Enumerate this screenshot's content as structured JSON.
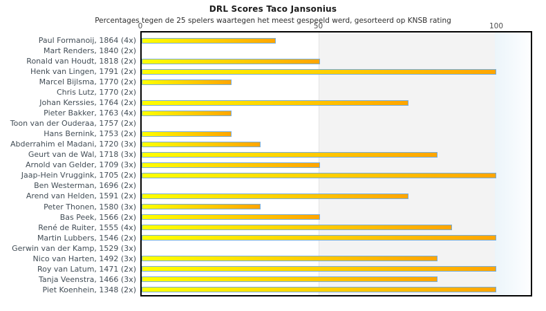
{
  "header": {
    "title": "DRL Scores Taco Jansonius",
    "subtitle": "Percentages tegen de 25 spelers waartegen het meest gespeeld werd, gesorteerd op KNSB rating"
  },
  "chart_data": {
    "type": "bar",
    "orientation": "horizontal",
    "title": "DRL Scores Taco Jansonius",
    "subtitle": "Percentages tegen de 25 spelers waartegen het meest gespeeld werd, gesorteerd op KNSB rating",
    "xlabel": "",
    "ylabel": "",
    "xlim": [
      0,
      110
    ],
    "ticks": [
      0,
      50,
      100
    ],
    "grid": false,
    "legend": "none",
    "categories": [
      "Paul Formanoij, 1864 (4x)",
      "Mart Renders, 1840 (2x)",
      "Ronald van Houdt, 1818 (2x)",
      "Henk van Lingen, 1791 (2x)",
      "Marcel Bijlsma, 1770 (2x)",
      "Chris Lutz, 1770 (2x)",
      "Johan Kerssies, 1764 (2x)",
      "Pieter Bakker, 1763 (4x)",
      "Toon van der Ouderaa, 1757 (2x)",
      "Hans Bernink, 1753 (2x)",
      "Abderrahim el Madani, 1720 (3x)",
      "Geurt van de Wal, 1718 (3x)",
      "Arnold van Gelder, 1709 (3x)",
      "Jaap-Hein Vruggink, 1705 (2x)",
      "Ben Westerman, 1696 (2x)",
      "Arend van Helden, 1591 (2x)",
      "Peter Thonen, 1580 (3x)",
      "Bas Peek, 1566 (2x)",
      "René de Ruiter, 1555 (4x)",
      "Martin Lubbers, 1546 (2x)",
      "Gerwin van der Kamp, 1529 (3x)",
      "Nico van Harten, 1492 (3x)",
      "Roy van Latum, 1471 (2x)",
      "Tanja Veenstra, 1466 (3x)",
      "Piet Koenhein, 1348 (2x)"
    ],
    "values": [
      37.5,
      0,
      50,
      100,
      25,
      0,
      75,
      25,
      0,
      25,
      33.3,
      83.3,
      50,
      100,
      0,
      75,
      33.3,
      50,
      87.5,
      100,
      0,
      83.3,
      100,
      83.3,
      100
    ],
    "colors": {
      "bar_gradient_start": "#ffff00",
      "bar_gradient_end": "#ffa500",
      "bar_border": "#74acdc",
      "band_50_100": "#f3f3f3",
      "band_beyond_100": "#ecf5fa",
      "plot_border": "#000000"
    }
  }
}
